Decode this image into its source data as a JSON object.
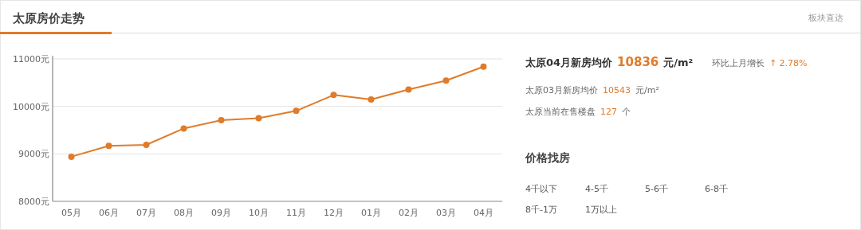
{
  "chart_data": [
    {
      "type": "line",
      "title": "太原房价走势",
      "annotations": [
        "板块直达"
      ],
      "categories": [
        "05月",
        "06月",
        "07月",
        "08月",
        "09月",
        "10月",
        "11月",
        "12月",
        "01月",
        "02月",
        "03月",
        "04月"
      ],
      "values": [
        8940,
        9170,
        9190,
        9535,
        9710,
        9750,
        9905,
        10240,
        10145,
        10355,
        10543,
        10836
      ],
      "color": "#e07b2a",
      "ylim": [
        8000,
        11000
      ],
      "yticks": [
        {
          "value": 8000,
          "label": "8000元"
        },
        {
          "value": 9000,
          "label": "9000元"
        },
        {
          "value": 10000,
          "label": "10000元"
        },
        {
          "value": 11000,
          "label": "11000元"
        }
      ],
      "grid": "y",
      "marker": "circle",
      "line_style": "solid"
    },
    {
      "type": "other",
      "annotations": [
        "太原04月新房均价",
        "10836",
        "元/m²",
        "环比上月增长",
        "↑",
        "2.78%",
        "太原03月新房均价",
        "10543",
        "元/m²",
        "太原当前在售楼盘",
        "127",
        "个"
      ]
    },
    {
      "type": "other",
      "title": "价格找房",
      "annotations": [
        "4千以下",
        "4-5千",
        "5-6千",
        "6-8千",
        "8千-1万",
        "1万以上"
      ]
    }
  ]
}
